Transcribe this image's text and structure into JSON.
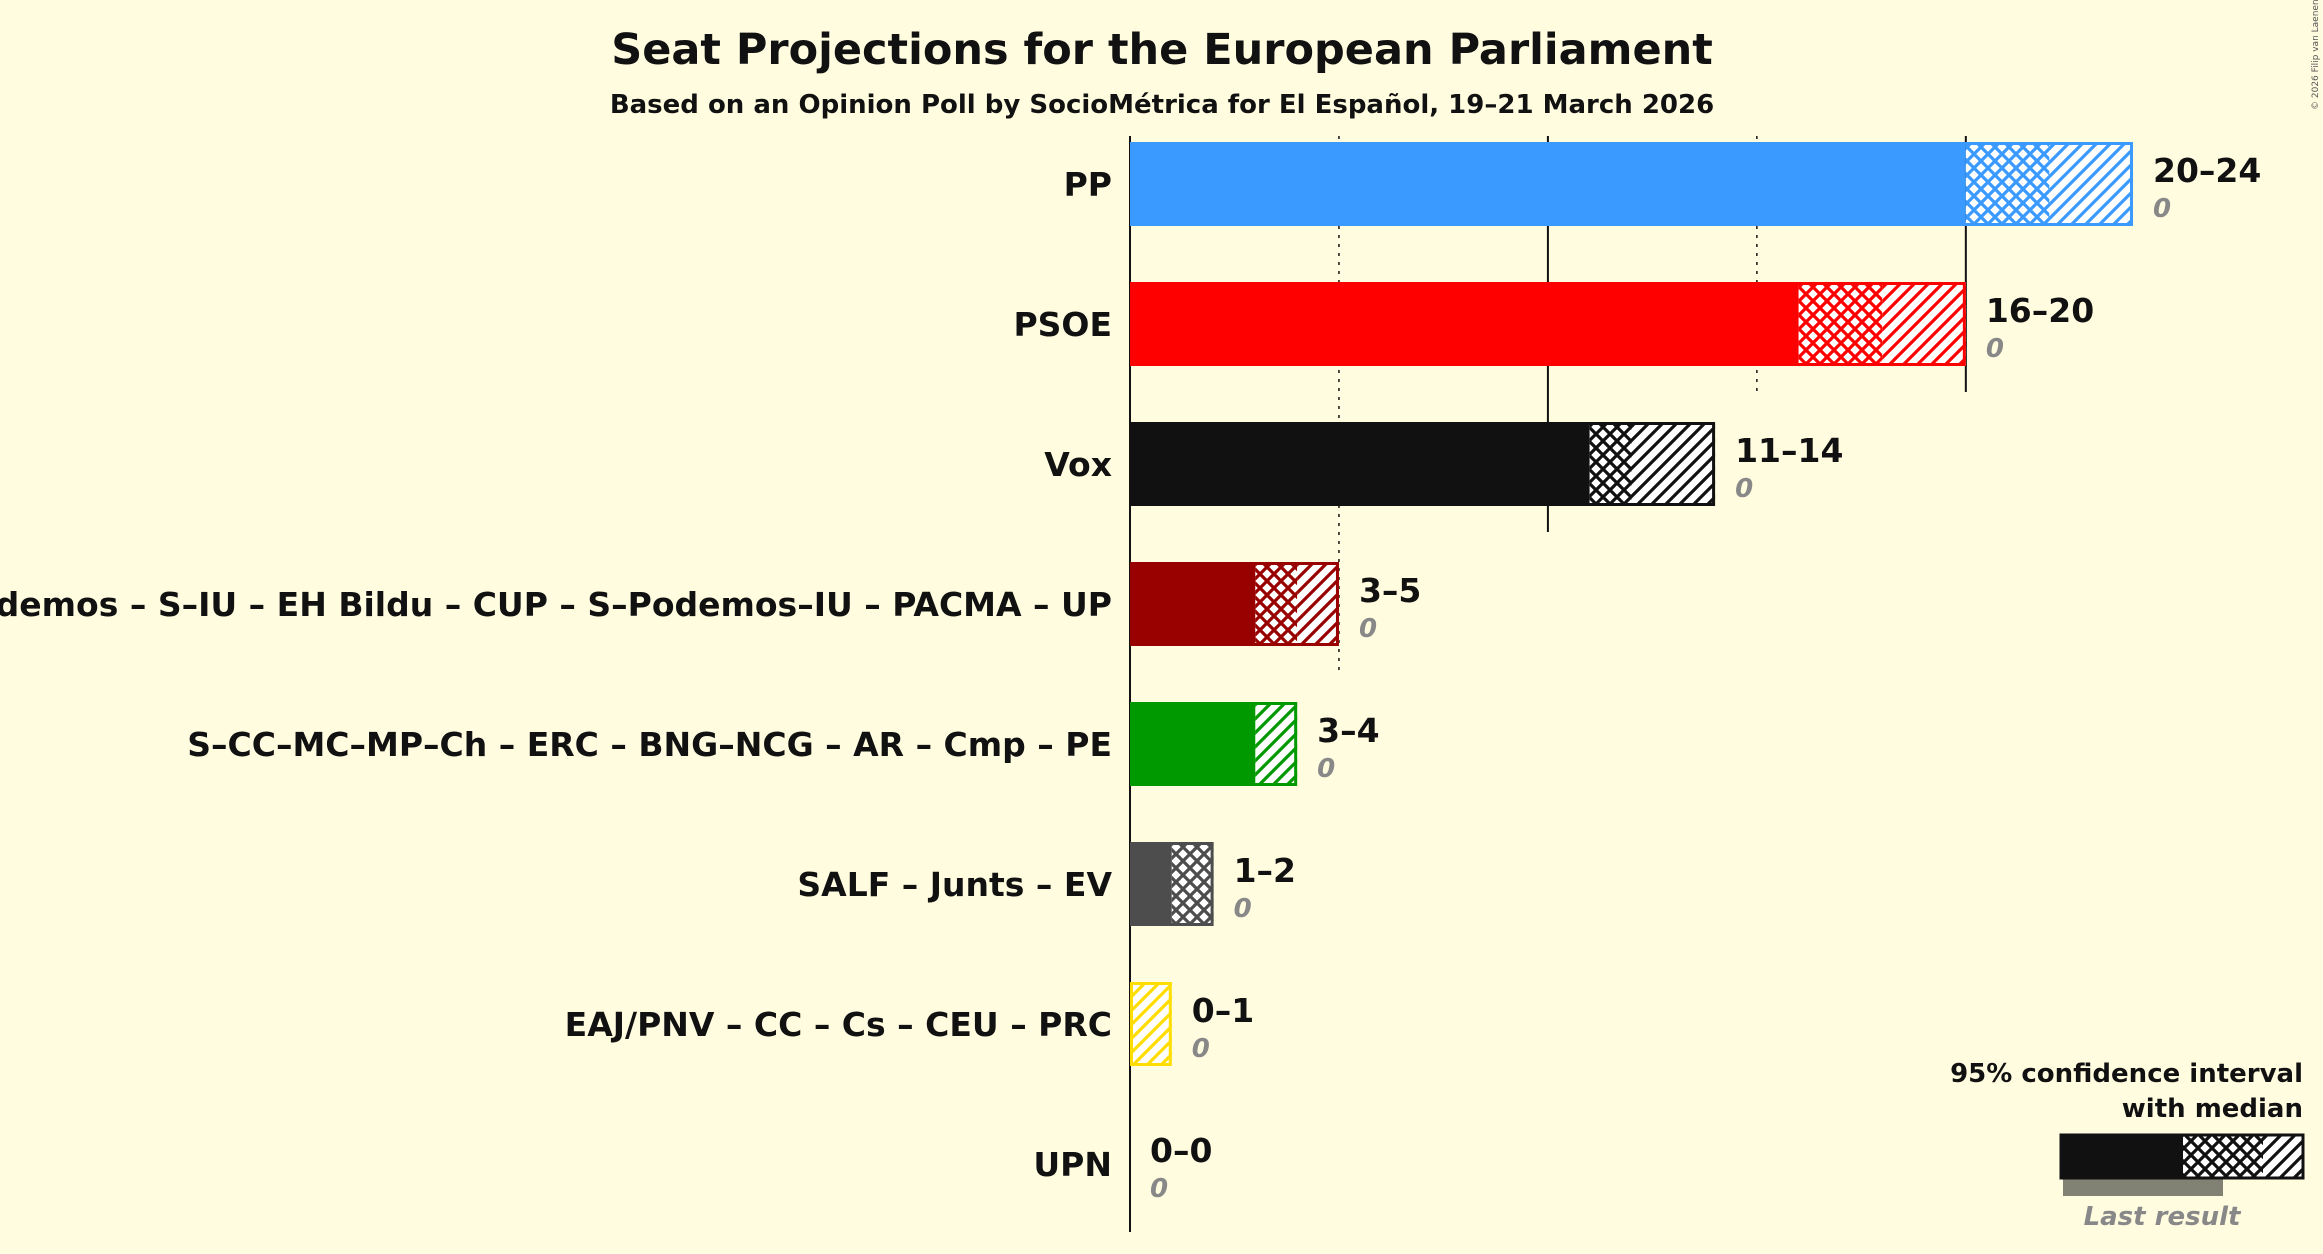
{
  "chart_data": {
    "type": "bar",
    "orientation": "horizontal",
    "title": "Seat Projections for the European Parliament",
    "subtitle": "Based on an Opinion Poll by SocioMétrica for El Español, 19–21 March 2026",
    "copyright": "© 2026 Filip van Laenen",
    "xlim": [
      0,
      24
    ],
    "gridlines_solid": [
      0,
      10,
      20
    ],
    "gridlines_dotted": [
      5,
      15
    ],
    "parties": [
      {
        "name": "PP",
        "low": 20,
        "median": 22,
        "high": 24,
        "range_label": "20–24",
        "last_result": 0,
        "last_label": "0",
        "color": "#3A9AFF"
      },
      {
        "name": "PSOE",
        "low": 16,
        "median": 18,
        "high": 20,
        "range_label": "16–20",
        "last_result": 0,
        "last_label": "0",
        "color": "#FF0000"
      },
      {
        "name": "Vox",
        "low": 11,
        "median": 12,
        "high": 14,
        "range_label": "11–14",
        "last_result": 0,
        "last_label": "0",
        "color": "#111111"
      },
      {
        "name": "Podemos – S–IU – EH Bildu – CUP – S–Podemos–IU – PACMA – UP",
        "low": 3,
        "median": 4,
        "high": 5,
        "range_label": "3–5",
        "last_result": 0,
        "last_label": "0",
        "color": "#990000"
      },
      {
        "name": "S–CC–MC–MP–Ch – ERC – BNG–NCG – AR – Cmp – PE",
        "low": 3,
        "median": 3,
        "high": 4,
        "range_label": "3–4",
        "last_result": 0,
        "last_label": "0",
        "color": "#009900"
      },
      {
        "name": "SALF – Junts – EV",
        "low": 1,
        "median": 2,
        "high": 2,
        "range_label": "1–2",
        "last_result": 0,
        "last_label": "0",
        "color": "#4D4D4D"
      },
      {
        "name": "EAJ/PNV – CC – Cs – CEU – PRC",
        "low": 0,
        "median": 0,
        "high": 1,
        "range_label": "0–1",
        "last_result": 0,
        "last_label": "0",
        "color": "#FFDD00"
      },
      {
        "name": "UPN",
        "low": 0,
        "median": 0,
        "high": 0,
        "range_label": "0–0",
        "last_result": 0,
        "last_label": "0",
        "color": "#111111"
      }
    ],
    "legend": {
      "line1": "95% confidence interval",
      "line2": "with median",
      "last_result": "Last result",
      "placement": "bottom-right"
    }
  }
}
